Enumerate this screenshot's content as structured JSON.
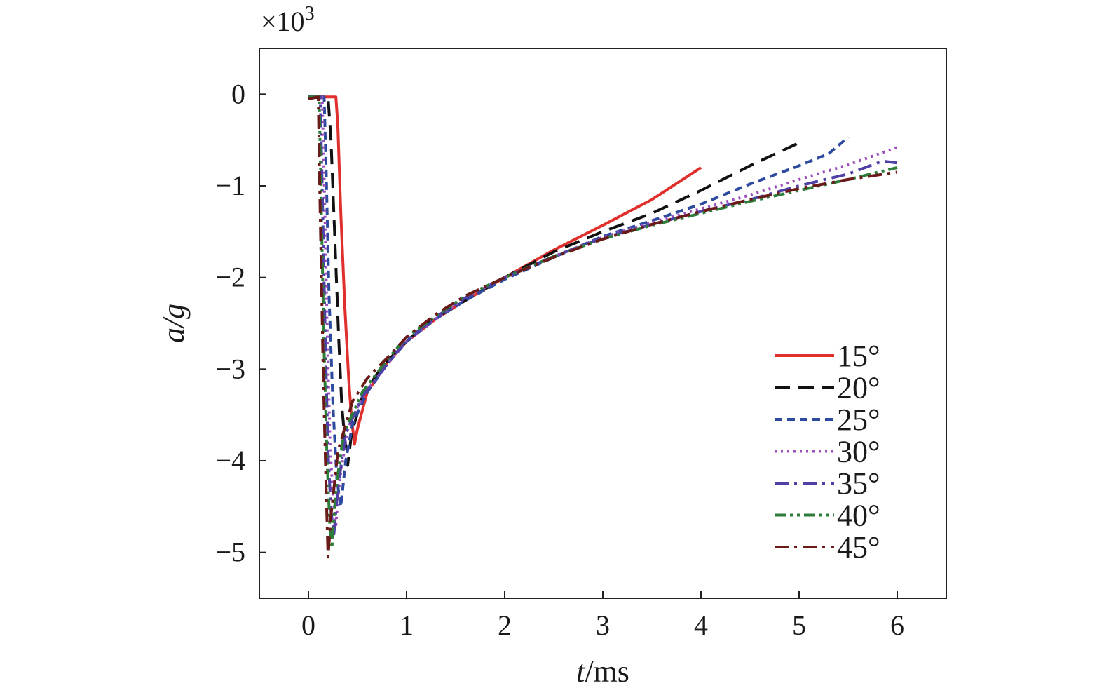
{
  "chart_data": {
    "type": "line",
    "title": "",
    "xlabel_var": "t",
    "xlabel_unit": "/ms",
    "ylabel_var": "a",
    "ylabel_unit": "/g",
    "y_multiplier_base": "×10",
    "y_multiplier_exp": "3",
    "xlim": [
      -0.5,
      6.5
    ],
    "ylim": [
      -5.5,
      0.5
    ],
    "xticks": [
      0,
      1,
      2,
      3,
      4,
      5,
      6
    ],
    "yticks": [
      0,
      -1,
      -2,
      -3,
      -4,
      -5
    ],
    "xtick_labels": [
      "0",
      "1",
      "2",
      "3",
      "4",
      "5",
      "6"
    ],
    "ytick_labels": [
      "0",
      "−1",
      "−2",
      "−3",
      "−4",
      "−5"
    ],
    "grid": false,
    "legend_position": "lower-right",
    "series": [
      {
        "name": "15°",
        "color": "#e0302e",
        "dash": "solid",
        "points": [
          [
            0,
            -0.03
          ],
          [
            0.28,
            -0.03
          ],
          [
            0.3,
            -0.35
          ],
          [
            0.33,
            -1.3
          ],
          [
            0.37,
            -2.3
          ],
          [
            0.41,
            -3.1
          ],
          [
            0.44,
            -3.55
          ],
          [
            0.47,
            -3.82
          ],
          [
            0.5,
            -3.65
          ],
          [
            0.6,
            -3.25
          ],
          [
            0.8,
            -2.93
          ],
          [
            1.0,
            -2.7
          ],
          [
            1.3,
            -2.45
          ],
          [
            1.6,
            -2.25
          ],
          [
            2.0,
            -2.0
          ],
          [
            2.5,
            -1.7
          ],
          [
            3.0,
            -1.43
          ],
          [
            3.5,
            -1.15
          ],
          [
            4.0,
            -0.8
          ]
        ]
      },
      {
        "name": "20°",
        "color": "#111111",
        "dash": "long",
        "points": [
          [
            0,
            -0.03
          ],
          [
            0.2,
            -0.03
          ],
          [
            0.23,
            -0.5
          ],
          [
            0.27,
            -1.6
          ],
          [
            0.31,
            -2.7
          ],
          [
            0.34,
            -3.4
          ],
          [
            0.37,
            -3.75
          ],
          [
            0.4,
            -4.05
          ],
          [
            0.44,
            -3.7
          ],
          [
            0.55,
            -3.3
          ],
          [
            0.7,
            -3.05
          ],
          [
            0.9,
            -2.8
          ],
          [
            1.2,
            -2.5
          ],
          [
            1.6,
            -2.25
          ],
          [
            2.0,
            -2.0
          ],
          [
            2.5,
            -1.72
          ],
          [
            3.0,
            -1.5
          ],
          [
            3.5,
            -1.3
          ],
          [
            4.0,
            -1.05
          ],
          [
            4.5,
            -0.78
          ],
          [
            5.0,
            -0.53
          ]
        ]
      },
      {
        "name": "25°",
        "color": "#2e4a9e",
        "dash": "short",
        "points": [
          [
            0,
            -0.03
          ],
          [
            0.16,
            -0.03
          ],
          [
            0.18,
            -0.8
          ],
          [
            0.21,
            -2.2
          ],
          [
            0.25,
            -3.4
          ],
          [
            0.29,
            -4.2
          ],
          [
            0.33,
            -4.5
          ],
          [
            0.38,
            -4.0
          ],
          [
            0.45,
            -3.6
          ],
          [
            0.6,
            -3.25
          ],
          [
            0.8,
            -2.95
          ],
          [
            1.0,
            -2.7
          ],
          [
            1.3,
            -2.45
          ],
          [
            1.6,
            -2.25
          ],
          [
            2.0,
            -2.02
          ],
          [
            2.5,
            -1.78
          ],
          [
            3.0,
            -1.55
          ],
          [
            3.5,
            -1.38
          ],
          [
            4.0,
            -1.2
          ],
          [
            4.5,
            -0.98
          ],
          [
            5.0,
            -0.78
          ],
          [
            5.3,
            -0.65
          ],
          [
            5.5,
            -0.47
          ]
        ]
      },
      {
        "name": "30°",
        "color": "#9b4fbb",
        "dash": "dot",
        "points": [
          [
            0,
            -0.03
          ],
          [
            0.14,
            -0.03
          ],
          [
            0.16,
            -0.9
          ],
          [
            0.19,
            -2.5
          ],
          [
            0.22,
            -3.8
          ],
          [
            0.25,
            -4.4
          ],
          [
            0.28,
            -4.7
          ],
          [
            0.32,
            -4.2
          ],
          [
            0.4,
            -3.65
          ],
          [
            0.55,
            -3.3
          ],
          [
            0.8,
            -2.95
          ],
          [
            1.0,
            -2.7
          ],
          [
            1.3,
            -2.45
          ],
          [
            1.6,
            -2.22
          ],
          [
            2.0,
            -2.0
          ],
          [
            2.5,
            -1.77
          ],
          [
            3.0,
            -1.56
          ],
          [
            3.5,
            -1.4
          ],
          [
            4.0,
            -1.25
          ],
          [
            4.5,
            -1.1
          ],
          [
            5.0,
            -0.93
          ],
          [
            5.5,
            -0.77
          ],
          [
            6.0,
            -0.58
          ]
        ]
      },
      {
        "name": "35°",
        "color": "#4f3fa6",
        "dash": "dashdot",
        "points": [
          [
            0,
            -0.03
          ],
          [
            0.12,
            -0.03
          ],
          [
            0.14,
            -1.0
          ],
          [
            0.17,
            -2.6
          ],
          [
            0.2,
            -3.9
          ],
          [
            0.23,
            -4.55
          ],
          [
            0.26,
            -4.8
          ],
          [
            0.3,
            -4.3
          ],
          [
            0.38,
            -3.7
          ],
          [
            0.55,
            -3.3
          ],
          [
            0.8,
            -2.95
          ],
          [
            1.0,
            -2.68
          ],
          [
            1.3,
            -2.43
          ],
          [
            1.6,
            -2.22
          ],
          [
            2.0,
            -2.0
          ],
          [
            2.5,
            -1.77
          ],
          [
            3.0,
            -1.57
          ],
          [
            3.5,
            -1.42
          ],
          [
            4.0,
            -1.28
          ],
          [
            4.5,
            -1.15
          ],
          [
            5.0,
            -1.0
          ],
          [
            5.5,
            -0.87
          ],
          [
            5.85,
            -0.73
          ],
          [
            6.0,
            -0.75
          ]
        ]
      },
      {
        "name": "40°",
        "color": "#2e7d3a",
        "dash": "dashdotdot",
        "points": [
          [
            0,
            -0.03
          ],
          [
            0.11,
            -0.03
          ],
          [
            0.13,
            -1.2
          ],
          [
            0.16,
            -2.8
          ],
          [
            0.19,
            -4.0
          ],
          [
            0.22,
            -4.75
          ],
          [
            0.24,
            -4.95
          ],
          [
            0.28,
            -4.3
          ],
          [
            0.36,
            -3.7
          ],
          [
            0.55,
            -3.25
          ],
          [
            0.8,
            -2.9
          ],
          [
            1.0,
            -2.65
          ],
          [
            1.3,
            -2.42
          ],
          [
            1.6,
            -2.2
          ],
          [
            2.0,
            -2.0
          ],
          [
            2.5,
            -1.77
          ],
          [
            3.0,
            -1.58
          ],
          [
            3.5,
            -1.43
          ],
          [
            4.0,
            -1.3
          ],
          [
            4.5,
            -1.17
          ],
          [
            5.0,
            -1.05
          ],
          [
            5.5,
            -0.93
          ],
          [
            6.0,
            -0.8
          ]
        ]
      },
      {
        "name": "45°",
        "color": "#6b1a1a",
        "dash": "dashdot",
        "points": [
          [
            0,
            -0.05
          ],
          [
            0.1,
            -0.03
          ],
          [
            0.12,
            -1.3
          ],
          [
            0.15,
            -3.0
          ],
          [
            0.18,
            -4.3
          ],
          [
            0.2,
            -5.05
          ],
          [
            0.23,
            -4.6
          ],
          [
            0.3,
            -3.9
          ],
          [
            0.45,
            -3.35
          ],
          [
            0.6,
            -3.1
          ],
          [
            0.8,
            -2.88
          ],
          [
            1.0,
            -2.65
          ],
          [
            1.3,
            -2.4
          ],
          [
            1.6,
            -2.2
          ],
          [
            2.0,
            -2.0
          ],
          [
            2.5,
            -1.78
          ],
          [
            3.0,
            -1.58
          ],
          [
            3.5,
            -1.42
          ],
          [
            4.0,
            -1.28
          ],
          [
            4.5,
            -1.15
          ],
          [
            5.0,
            -1.03
          ],
          [
            5.5,
            -0.93
          ],
          [
            6.0,
            -0.85
          ]
        ]
      }
    ]
  }
}
